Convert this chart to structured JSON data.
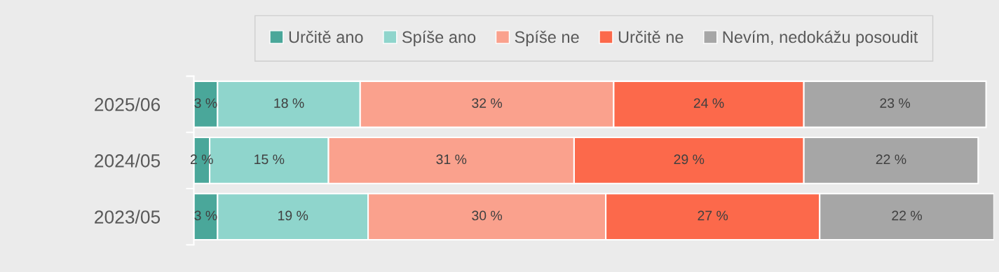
{
  "chart_data": {
    "type": "bar",
    "orientation": "horizontal",
    "stacked": true,
    "categories": [
      "2025/06",
      "2024/05",
      "2023/05"
    ],
    "xlim": [
      0,
      101
    ],
    "tick_labels": "y",
    "legend": "top",
    "grid": false,
    "series": [
      {
        "name": "Určitě ano",
        "color": "#4aa79a",
        "values": [
          3,
          2,
          3
        ],
        "value_labels": [
          "3 %",
          "2 %",
          "3 %"
        ]
      },
      {
        "name": "Spíše ano",
        "color": "#8fd5cc",
        "values": [
          18,
          15,
          19
        ],
        "value_labels": [
          "18 %",
          "15 %",
          "19 %"
        ]
      },
      {
        "name": "Spíše ne",
        "color": "#faa18d",
        "values": [
          32,
          31,
          30
        ],
        "value_labels": [
          "32 %",
          "31 %",
          "30 %"
        ]
      },
      {
        "name": "Určitě ne",
        "color": "#fc694b",
        "values": [
          24,
          29,
          27
        ],
        "value_labels": [
          "24 %",
          "29 %",
          "27 %"
        ]
      },
      {
        "name": "Nevím, nedokážu posoudit",
        "color": "#a6a6a6",
        "values": [
          23,
          22,
          22
        ],
        "value_labels": [
          "23 %",
          "22 %",
          "22 %"
        ]
      }
    ]
  }
}
